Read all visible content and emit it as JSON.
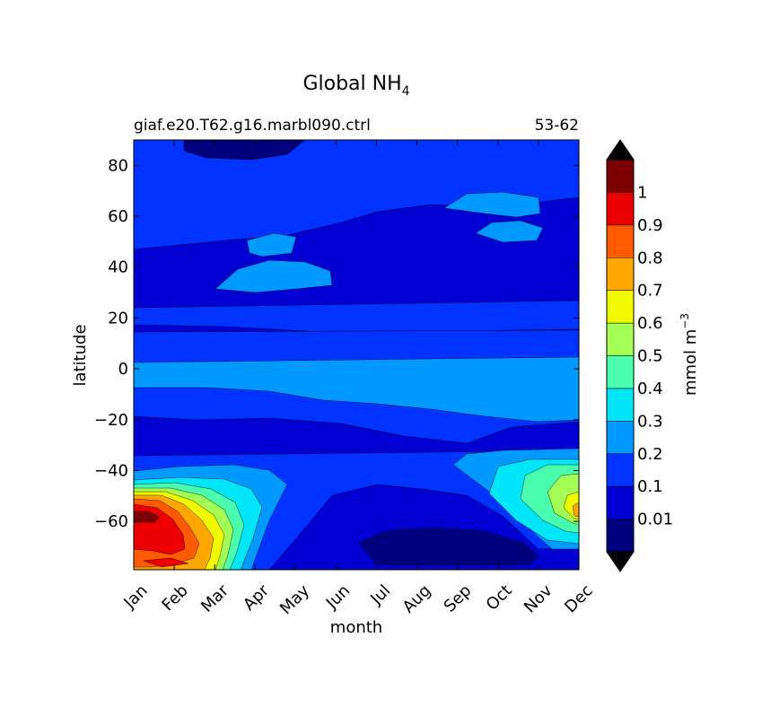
{
  "chart_data": {
    "type": "contourf",
    "title": "Global NH",
    "title_subscript": "4",
    "subtitle_left": "giaf.e20.T62.g16.marbl090.ctrl",
    "subtitle_right": "53-62",
    "xlabel": "month",
    "ylabel": "latitude",
    "x_categories": [
      "Jan",
      "Feb",
      "Mar",
      "Apr",
      "May",
      "Jun",
      "Jul",
      "Aug",
      "Sep",
      "Oct",
      "Nov",
      "Dec"
    ],
    "y_ticks": [
      "80",
      "60",
      "40",
      "20",
      "0",
      "−20",
      "−40",
      "−60"
    ],
    "y_tick_values": [
      80,
      60,
      40,
      20,
      0,
      -20,
      -40,
      -60
    ],
    "ylim": [
      -79,
      90
    ],
    "colorbar": {
      "label": "mmol m",
      "label_superscript": "−3",
      "levels": [
        0.01,
        0.1,
        0.2,
        0.3,
        0.4,
        0.5,
        0.6,
        0.7,
        0.8,
        0.9,
        1.0,
        1.1
      ],
      "tick_labels": [
        "0.01",
        "0.1",
        "0.2",
        "0.3",
        "0.4",
        "0.5",
        "0.6",
        "0.7",
        "0.8",
        "0.9",
        "1"
      ],
      "colors": [
        "#00007f",
        "#0000d5",
        "#0033ff",
        "#0099ff",
        "#00e5f7",
        "#49ffad",
        "#a3ff53",
        "#f0f900",
        "#ffa700",
        "#ff5a00",
        "#ee0000",
        "#7f0000"
      ],
      "extend": "both",
      "extend_low_color": "#000000",
      "extend_high_color": "#000000"
    },
    "approx_field_description_values": {
      "background_level": 0.1,
      "southern_high_bands": [
        {
          "months": [
            "Jan",
            "Mar"
          ],
          "lat_range": [
            -79,
            -48
          ],
          "max": 1.0
        },
        {
          "months": [
            "Oct",
            "Dec"
          ],
          "lat_range": [
            -75,
            -37
          ],
          "max": 0.8
        }
      ]
    }
  }
}
